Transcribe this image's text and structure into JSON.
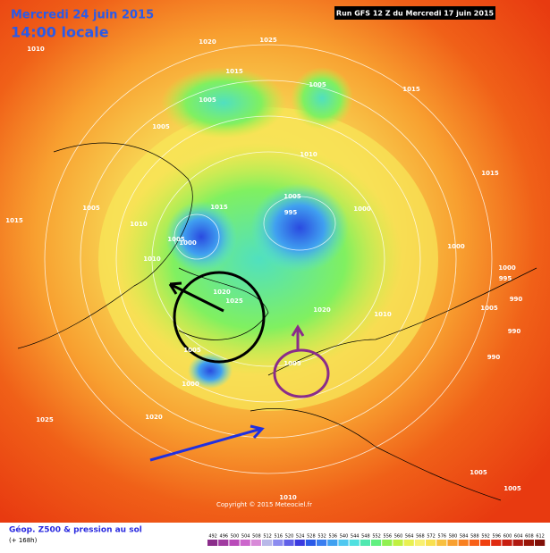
{
  "header": {
    "date": "Mercredi 24 juin 2015",
    "time": "14:00 locale",
    "run": "Run GFS 12 Z du Mercredi 17 juin 2015"
  },
  "footer": {
    "title": "Géop. Z500 & pression au sol",
    "lead": "(+ 168h)",
    "copyright": "Copyright © 2015 Meteociel.fr"
  },
  "scale": {
    "labels": [
      492,
      496,
      500,
      504,
      508,
      512,
      516,
      520,
      524,
      528,
      532,
      536,
      540,
      544,
      548,
      552,
      556,
      560,
      564,
      568,
      572,
      576,
      580,
      584,
      588,
      592,
      596,
      600,
      604,
      608,
      612
    ],
    "colors": [
      "#8a2c8a",
      "#a03aa0",
      "#b94ab9",
      "#cc66cc",
      "#d88ad8",
      "#b8b8e8",
      "#8c8cf0",
      "#6060e8",
      "#3a3ae0",
      "#2a5ae8",
      "#3a7ef0",
      "#40a0f0",
      "#50c8f0",
      "#50e0e0",
      "#50e8b0",
      "#60f080",
      "#90f050",
      "#c0f040",
      "#e8f050",
      "#f8f070",
      "#f8e050",
      "#f8c040",
      "#f8a030",
      "#f88020",
      "#f86018",
      "#f04010",
      "#e02a10",
      "#c81e10",
      "#b01810",
      "#981408",
      "#801008"
    ]
  },
  "map_labels": [
    "1010",
    "1020",
    "1025",
    "1015",
    "1005",
    "1005",
    "1015",
    "1005",
    "1010",
    "1015",
    "1015",
    "1005",
    "1010",
    "1015",
    "1005",
    "995",
    "1000",
    "1005",
    "1000",
    "1010",
    "1000",
    "1000",
    "995",
    "1020",
    "1025",
    "1020",
    "1010",
    "1005",
    "990",
    "990",
    "990",
    "1005",
    "1000",
    "1005",
    "1025",
    "1020",
    "1005",
    "1010",
    "1005"
  ]
}
